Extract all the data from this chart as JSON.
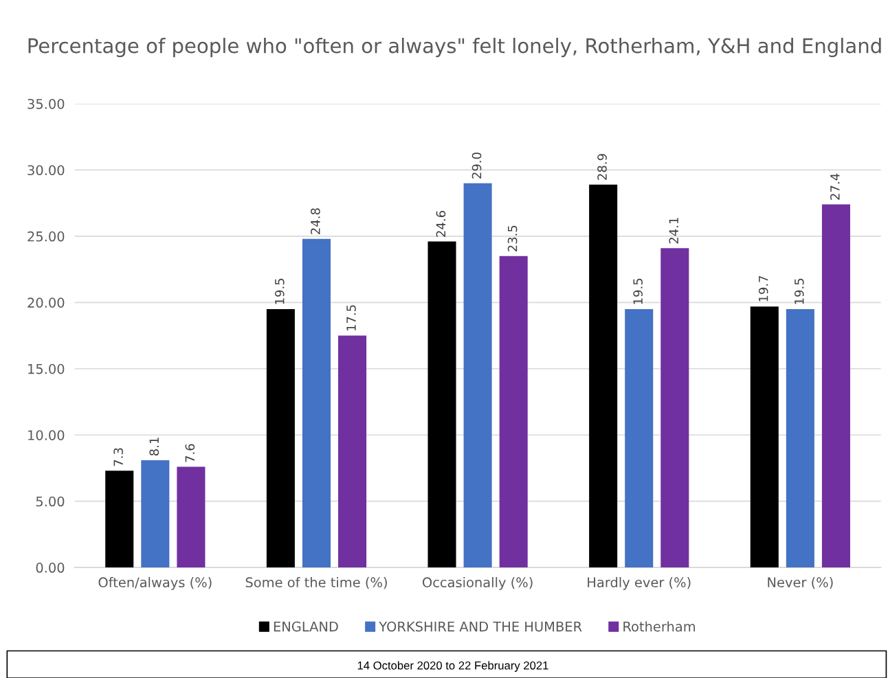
{
  "chart_data": {
    "type": "bar",
    "title": "Percentage of people who \"often or always\" felt lonely, Rotherham, Y&H and England",
    "categories": [
      "Often/always (%)",
      "Some of the time (%)",
      "Occasionally (%)",
      "Hardly ever (%)",
      "Never (%)"
    ],
    "series": [
      {
        "name": "ENGLAND",
        "color": "#000000",
        "values": [
          7.3,
          19.5,
          24.6,
          28.9,
          19.7
        ],
        "value_labels": [
          "7.3",
          "19.5",
          "24.6",
          "28.9",
          "19.7"
        ]
      },
      {
        "name": "YORKSHIRE AND THE HUMBER",
        "color": "#4472c4",
        "values": [
          8.1,
          24.8,
          29.0,
          19.5,
          19.5
        ],
        "value_labels": [
          "8.1",
          "24.8",
          "29.0",
          "19.5",
          "19.5"
        ]
      },
      {
        "name": "Rotherham",
        "color": "#7030a0",
        "values": [
          7.6,
          17.5,
          23.5,
          24.1,
          27.4
        ],
        "value_labels": [
          "7.6",
          "17.5",
          "23.5",
          "24.1",
          "27.4"
        ]
      }
    ],
    "ylim": [
      0,
      35
    ],
    "yticks": [
      {
        "value": 0,
        "label": "0.00"
      },
      {
        "value": 5,
        "label": "5.00"
      },
      {
        "value": 10,
        "label": "10.00"
      },
      {
        "value": 15,
        "label": "15.00"
      },
      {
        "value": 20,
        "label": "20.00"
      },
      {
        "value": 25,
        "label": "25.00"
      },
      {
        "value": 30,
        "label": "30.00"
      },
      {
        "value": 35,
        "label": "35.00"
      }
    ],
    "grid": "y",
    "legend": "bottom",
    "annotations": [
      "14 October 2020 to 22 February 2021"
    ]
  }
}
